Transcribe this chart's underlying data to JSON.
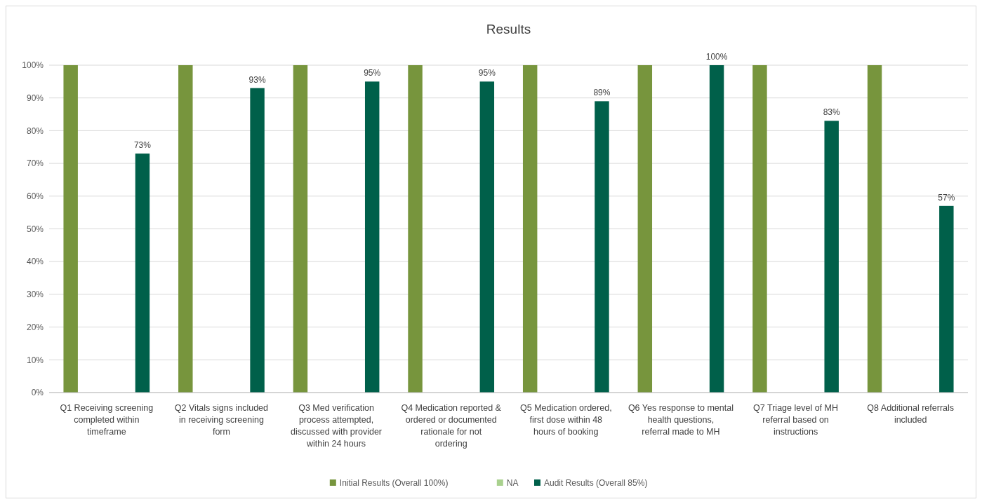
{
  "chart_data": {
    "type": "bar",
    "title": "Results",
    "categories": [
      "Q1 Receiving screening completed within timeframe",
      "Q2 Vitals signs included in receiving screening form",
      "Q3 Med verification process attempted, discussed with provider within 24 hours",
      "Q4 Medication reported & ordered or documented rationale for not ordering",
      "Q5 Medication ordered, first dose within 48 hours of booking",
      "Q6 Yes response to mental health questions, referral made to MH",
      "Q7 Triage level of MH referral based on instructions",
      "Q8 Additional referrals included"
    ],
    "series": [
      {
        "name": "Initial Results (Overall 100%)",
        "color": "#77953d",
        "values": [
          100,
          100,
          100,
          100,
          100,
          100,
          100,
          100
        ]
      },
      {
        "name": "NA",
        "color": "#a9d18e",
        "values": [
          null,
          null,
          null,
          null,
          null,
          null,
          null,
          null
        ]
      },
      {
        "name": "Audit Results (Overall 85%)",
        "color": "#00604a",
        "values": [
          73,
          93,
          95,
          95,
          89,
          100,
          83,
          57
        ],
        "value_labels": [
          "73%",
          "93%",
          "95%",
          "95%",
          "89%",
          "100%",
          "83%",
          "57%"
        ]
      }
    ],
    "ylim": [
      0,
      100
    ],
    "yticks": [
      {
        "value": 0,
        "label": "0%"
      },
      {
        "value": 10,
        "label": "10%"
      },
      {
        "value": 20,
        "label": "20%"
      },
      {
        "value": 30,
        "label": "30%"
      },
      {
        "value": 40,
        "label": "40%"
      },
      {
        "value": 50,
        "label": "50%"
      },
      {
        "value": 60,
        "label": "60%"
      },
      {
        "value": 70,
        "label": "70%"
      },
      {
        "value": 80,
        "label": "80%"
      },
      {
        "value": 90,
        "label": "90%"
      },
      {
        "value": 100,
        "label": "100%"
      }
    ],
    "grid": "y",
    "legend": "bottom"
  }
}
